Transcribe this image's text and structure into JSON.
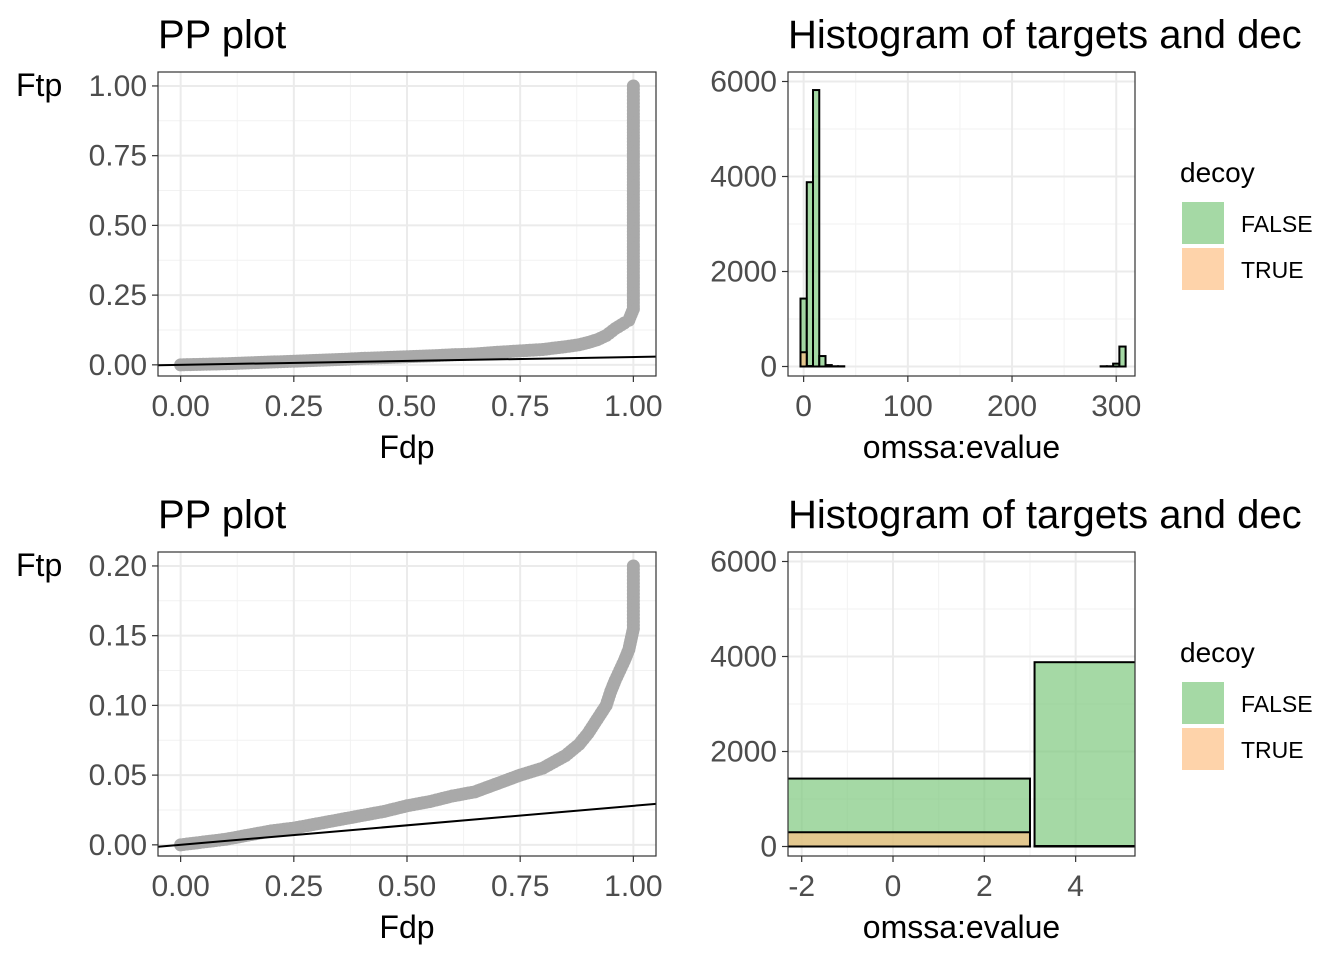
{
  "chart_data": [
    {
      "id": "pp_top",
      "type": "scatter",
      "title": "PP plot",
      "xlabel": "Fdp",
      "ylabel": "Ftp",
      "xlim": [
        -0.05,
        1.05
      ],
      "ylim": [
        -0.04,
        1.05
      ],
      "xticks": [
        0.0,
        0.25,
        0.5,
        0.75,
        1.0
      ],
      "xtick_labels": [
        "0.00",
        "0.25",
        "0.50",
        "0.75",
        "1.00"
      ],
      "yticks": [
        0.0,
        0.25,
        0.5,
        0.75,
        1.0
      ],
      "ytick_labels": [
        "0.00",
        "0.25",
        "0.50",
        "0.75",
        "1.00"
      ],
      "grid": true,
      "point_color": "#A9A9A9",
      "points": {
        "x": [
          0.0,
          0.05,
          0.1,
          0.15,
          0.2,
          0.25,
          0.3,
          0.35,
          0.4,
          0.45,
          0.5,
          0.55,
          0.6,
          0.65,
          0.7,
          0.75,
          0.8,
          0.85,
          0.88,
          0.9,
          0.92,
          0.94,
          0.96,
          0.98,
          0.99,
          1.0,
          1.0,
          1.0,
          1.0,
          1.0,
          1.0,
          1.0,
          1.0,
          1.0,
          1.0
        ],
        "y": [
          0.0,
          0.002,
          0.004,
          0.007,
          0.01,
          0.013,
          0.016,
          0.019,
          0.023,
          0.026,
          0.029,
          0.032,
          0.036,
          0.039,
          0.045,
          0.05,
          0.055,
          0.065,
          0.072,
          0.08,
          0.09,
          0.105,
          0.13,
          0.15,
          0.16,
          0.2,
          0.3,
          0.4,
          0.5,
          0.6,
          0.7,
          0.8,
          0.9,
          0.95,
          1.0
        ]
      },
      "reference_line": {
        "x": [
          -0.05,
          1.05
        ],
        "y": [
          -0.0014,
          0.0294
        ]
      }
    },
    {
      "id": "hist_top",
      "type": "bar",
      "title": "Histogram of targets and dec",
      "xlabel": "omssa:evalue",
      "ylabel": "",
      "xlim": [
        -15,
        318
      ],
      "ylim": [
        -200,
        6200
      ],
      "xticks": [
        0,
        100,
        200,
        300
      ],
      "xtick_labels": [
        "0",
        "100",
        "200",
        "300"
      ],
      "yticks": [
        0,
        2000,
        4000,
        6000
      ],
      "ytick_labels": [
        "0",
        "2000",
        "4000",
        "6000"
      ],
      "grid": true,
      "bin_width": 6,
      "series": [
        {
          "name": "FALSE",
          "color": "#7FC97F",
          "bins_start": [
            -3,
            3,
            9,
            15,
            21,
            27,
            33,
            285,
            291,
            297,
            303
          ],
          "counts": [
            1430,
            3880,
            5820,
            220,
            30,
            5,
            5,
            5,
            5,
            60,
            420
          ]
        },
        {
          "name": "TRUE",
          "color": "#FDC086",
          "bins_start": [
            -3,
            3
          ],
          "counts": [
            300,
            10
          ]
        }
      ],
      "legend": {
        "title": "decoy",
        "position": "right",
        "labels": [
          "FALSE",
          "TRUE"
        ]
      }
    },
    {
      "id": "pp_bottom",
      "type": "scatter",
      "title": "PP plot",
      "xlabel": "Fdp",
      "ylabel": "Ftp",
      "xlim": [
        -0.05,
        1.05
      ],
      "ylim": [
        -0.008,
        0.21
      ],
      "xticks": [
        0.0,
        0.25,
        0.5,
        0.75,
        1.0
      ],
      "xtick_labels": [
        "0.00",
        "0.25",
        "0.50",
        "0.75",
        "1.00"
      ],
      "yticks": [
        0.0,
        0.05,
        0.1,
        0.15,
        0.2
      ],
      "ytick_labels": [
        "0.00",
        "0.05",
        "0.10",
        "0.15",
        "0.20"
      ],
      "grid": true,
      "point_color": "#A9A9A9",
      "points": {
        "x": [
          0.0,
          0.05,
          0.1,
          0.15,
          0.2,
          0.25,
          0.3,
          0.35,
          0.4,
          0.45,
          0.5,
          0.55,
          0.6,
          0.65,
          0.7,
          0.75,
          0.8,
          0.85,
          0.88,
          0.9,
          0.92,
          0.94,
          0.95,
          0.96,
          0.97,
          0.98,
          0.99,
          1.0,
          1.0,
          1.0,
          1.0,
          1.0
        ],
        "y": [
          0.0,
          0.002,
          0.004,
          0.007,
          0.01,
          0.012,
          0.015,
          0.018,
          0.021,
          0.024,
          0.028,
          0.031,
          0.035,
          0.038,
          0.044,
          0.05,
          0.055,
          0.064,
          0.072,
          0.08,
          0.09,
          0.1,
          0.11,
          0.118,
          0.125,
          0.132,
          0.14,
          0.155,
          0.16,
          0.17,
          0.185,
          0.2
        ]
      },
      "reference_line": {
        "x": [
          -0.05,
          1.05
        ],
        "y": [
          -0.0014,
          0.0294
        ]
      }
    },
    {
      "id": "hist_bottom",
      "type": "bar",
      "title": "Histogram of targets and dec",
      "xlabel": "omssa:evalue",
      "ylabel": "",
      "xlim": [
        -2.3,
        5.3
      ],
      "ylim": [
        -200,
        6200
      ],
      "xticks": [
        -2,
        0,
        2,
        4
      ],
      "xtick_labels": [
        "-2",
        "0",
        "2",
        "4"
      ],
      "yticks": [
        0,
        2000,
        4000,
        6000
      ],
      "ytick_labels": [
        "0",
        "2000",
        "4000",
        "6000"
      ],
      "grid": true,
      "bin_width": 6,
      "series": [
        {
          "name": "FALSE",
          "color": "#7FC97F",
          "bins_start": [
            -3,
            3.1
          ],
          "counts": [
            1430,
            3880
          ]
        },
        {
          "name": "TRUE",
          "color": "#FDC086",
          "bins_start": [
            -3,
            3.1
          ],
          "counts": [
            300,
            10
          ]
        }
      ],
      "legend": {
        "title": "decoy",
        "position": "right",
        "labels": [
          "FALSE",
          "TRUE"
        ]
      }
    }
  ]
}
